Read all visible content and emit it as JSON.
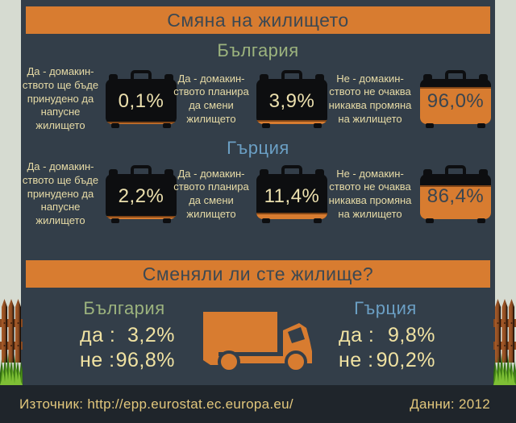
{
  "title": "Смяна на жилището",
  "question_banner": "Сменяли ли сте жилище?",
  "sections": [
    {
      "country": "България",
      "items": [
        {
          "label": "Да - домакин-\nството ще бъде\nпринудено да\nнапусне\nжилището",
          "value": 0.1,
          "display": "0,1%"
        },
        {
          "label": "Да - домакин-\nството планира\nда смени\nжилището",
          "value": 3.9,
          "display": "3,9%"
        },
        {
          "label": "Не - домакин-\nството не очаква\nникаква промяна\nна жилището",
          "value": 96.0,
          "display": "96,0%"
        }
      ]
    },
    {
      "country": "Гърция",
      "items": [
        {
          "label": "Да - домакин-\nството ще бъде\nпринудено да\nнапусне\nжилището",
          "value": 2.2,
          "display": "2,2%"
        },
        {
          "label": "Да - домакин-\nството планира\nда смени\nжилището",
          "value": 11.4,
          "display": "11,4%"
        },
        {
          "label": "Не - домакин-\nството не очаква\nникаква промяна\nна жилището",
          "value": 86.4,
          "display": "86,4%"
        }
      ]
    }
  ],
  "moved": {
    "left": {
      "country": "България",
      "rows": [
        {
          "label": "да :",
          "value": "3,2%"
        },
        {
          "label": "не :",
          "value": "96,8%"
        }
      ]
    },
    "right": {
      "country": "Гърция",
      "rows": [
        {
          "label": "да :",
          "value": "9,8%"
        },
        {
          "label": "не :",
          "value": "90,2%"
        }
      ]
    }
  },
  "footer": {
    "source": "Източник: http://epp.eurostat.ec.europa.eu/",
    "year": "Данни: 2012"
  },
  "colors": {
    "orange": "#d87c30",
    "panel": "#333e49",
    "page_bg": "#d6dbd1",
    "footer_bg": "#1f252b",
    "green": "#9cb37e",
    "blue": "#6b9fc4",
    "label_cream": "#e7dba6",
    "value_cream": "#f0e2a2",
    "dark_text": "#3c4852",
    "case_black": "#0d0e10"
  },
  "chart_data": [
    {
      "type": "bar",
      "title": "Смяна на жилището — България",
      "categories": [
        "Да - домакинството ще бъде принудено да напусне жилището",
        "Да - домакинството планира да смени жилището",
        "Не - домакинството не очаква никаква промяна на жилището"
      ],
      "values": [
        0.1,
        3.9,
        96.0
      ],
      "unit": "%",
      "ylim": [
        0,
        100
      ]
    },
    {
      "type": "bar",
      "title": "Смяна на жилището — Гърция",
      "categories": [
        "Да - домакинството ще бъде принудено да напусне жилището",
        "Да - домакинството планира да смени жилището",
        "Не - домакинството не очаква никаква промяна на жилището"
      ],
      "values": [
        2.2,
        11.4,
        86.4
      ],
      "unit": "%",
      "ylim": [
        0,
        100
      ]
    },
    {
      "type": "table",
      "title": "Сменяли ли сте жилище?",
      "categories": [
        "България",
        "Гърция"
      ],
      "series": [
        {
          "name": "да",
          "values": [
            3.2,
            9.8
          ]
        },
        {
          "name": "не",
          "values": [
            96.8,
            90.2
          ]
        }
      ],
      "unit": "%"
    }
  ]
}
